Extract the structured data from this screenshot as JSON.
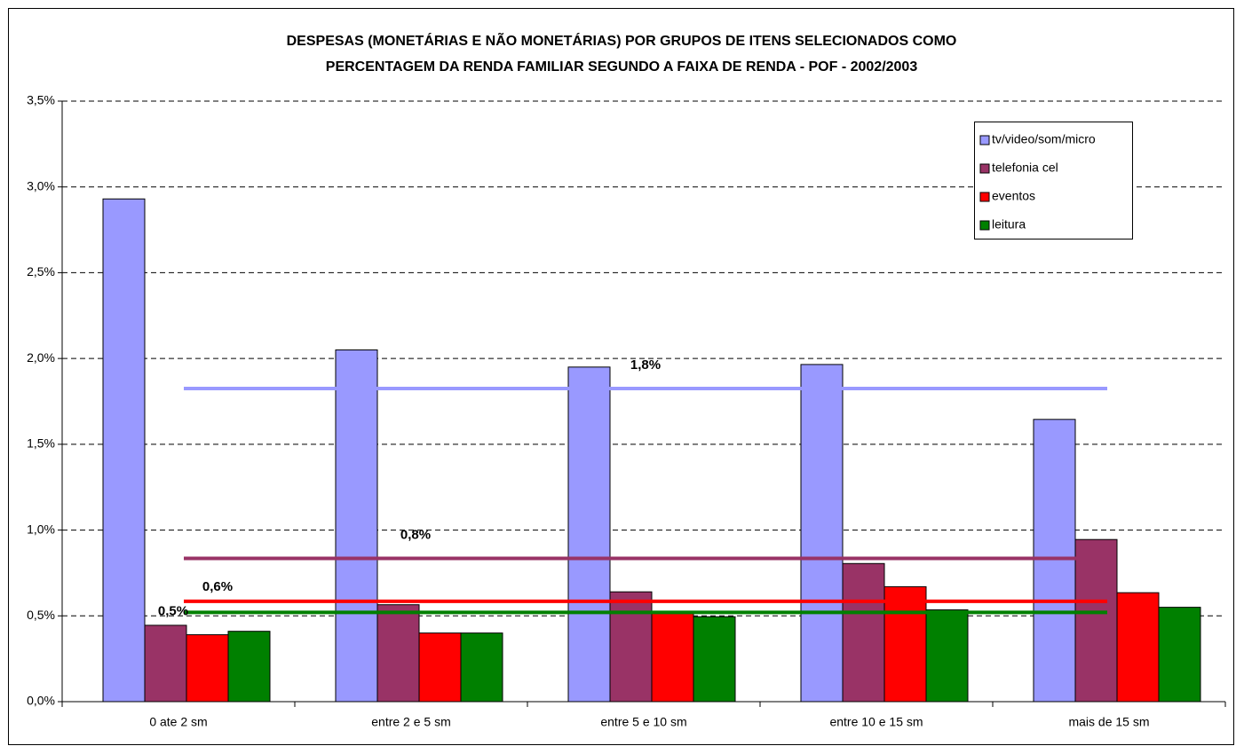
{
  "chart_data": {
    "type": "bar",
    "title_lines": [
      "DESPESAS (MONETÁRIAS E NÃO MONETÁRIAS) POR GRUPOS DE ITENS SELECIONADOS COMO",
      "PERCENTAGEM DA RENDA FAMILIAR  SEGUNDO A FAIXA DE RENDA - POF - 2002/2003"
    ],
    "categories": [
      "0 ate 2 sm",
      "entre 2 e 5 sm",
      "entre 5 e 10 sm",
      "entre 10 e 15 sm",
      "mais de 15 sm"
    ],
    "series": [
      {
        "name": "tv/video/som/micro",
        "color": "#9999ff",
        "values": [
          2.93,
          2.05,
          1.95,
          1.965,
          1.645
        ]
      },
      {
        "name": "telefonia cel",
        "color": "#993366",
        "values": [
          0.445,
          0.565,
          0.64,
          0.805,
          0.945
        ]
      },
      {
        "name": "eventos",
        "color": "#ff0000",
        "values": [
          0.39,
          0.4,
          0.52,
          0.67,
          0.635
        ]
      },
      {
        "name": "leitura",
        "color": "#008000",
        "values": [
          0.41,
          0.4,
          0.495,
          0.535,
          0.55
        ]
      }
    ],
    "average_lines": [
      {
        "value": 1.825,
        "label": "1,8%",
        "color": "#9999ff"
      },
      {
        "value": 0.835,
        "label": "0,8%",
        "color": "#993366"
      },
      {
        "value": 0.585,
        "label": "0,6%",
        "color": "#ff0000"
      },
      {
        "value": 0.52,
        "label": "0,5%",
        "color": "#008000"
      }
    ],
    "ylim": [
      0,
      3.5
    ],
    "yticks": [
      {
        "value": 0,
        "label": "0,0%"
      },
      {
        "value": 0.5,
        "label": "0,5%"
      },
      {
        "value": 1,
        "label": "1,0%"
      },
      {
        "value": 1.5,
        "label": "1,5%"
      },
      {
        "value": 2,
        "label": "2,0%"
      },
      {
        "value": 2.5,
        "label": "2,5%"
      },
      {
        "value": 3,
        "label": "3,0%"
      },
      {
        "value": 3.5,
        "label": "3,5%"
      }
    ],
    "grid": true,
    "legend": "upper right"
  }
}
